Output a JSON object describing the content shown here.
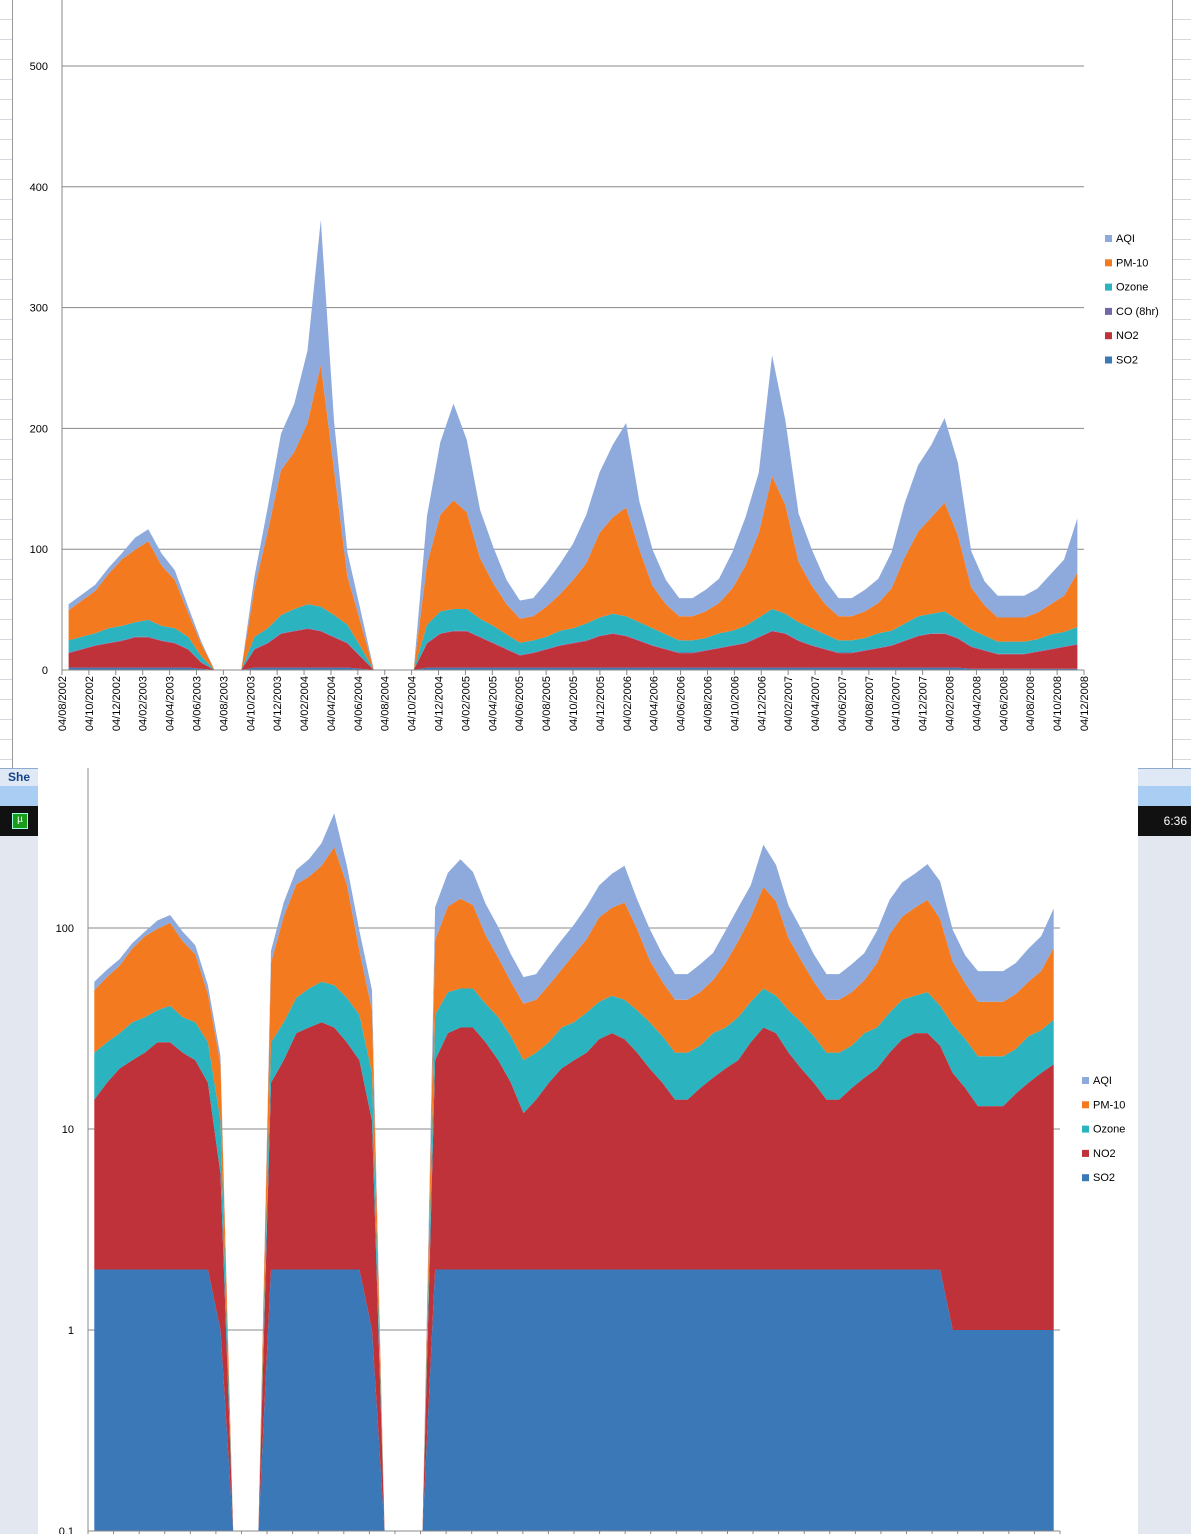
{
  "taskbar": {
    "sheet_tab": "She",
    "clock": "6:36"
  },
  "chart_data": [
    {
      "type": "area",
      "stacked": true,
      "scale": "linear",
      "ylim": [
        0,
        560
      ],
      "yticks": [
        0,
        100,
        200,
        300,
        400,
        500
      ],
      "grid": true,
      "legend": "right",
      "series_colors": {
        "SO2": "#3a78b8",
        "NO2": "#c0323a",
        "CO (8hr)": "#7466a8",
        "Ozone": "#2bb3c0",
        "PM-10": "#f47a20",
        "AQI": "#8eaadc"
      },
      "legend_entries": [
        "AQI",
        "PM-10",
        "Ozone",
        "CO (8hr)",
        "NO2",
        "SO2"
      ],
      "stack_order": [
        "SO2",
        "NO2",
        "CO (8hr)",
        "Ozone",
        "PM-10",
        "AQI"
      ]
    },
    {
      "type": "area",
      "stacked": true,
      "scale": "log",
      "ylim": [
        0.1,
        620
      ],
      "yticks": [
        0.1,
        1,
        10,
        100
      ],
      "grid": true,
      "legend": "right",
      "legend_entries": [
        "AQI",
        "PM-10",
        "Ozone",
        "NO2",
        "SO2"
      ],
      "stack_order": [
        "SO2",
        "NO2",
        "Ozone",
        "PM-10",
        "AQI"
      ]
    }
  ],
  "x_tick_labels": [
    "04/08/2002",
    "04/10/2002",
    "04/12/2002",
    "04/02/2003",
    "04/04/2003",
    "04/06/2003",
    "04/08/2003",
    "04/10/2003",
    "04/12/2003",
    "04/02/2004",
    "04/04/2004",
    "04/06/2004",
    "04/08/2004",
    "04/10/2004",
    "04/12/2004",
    "04/02/2005",
    "04/04/2005",
    "04/06/2005",
    "04/08/2005",
    "04/10/2005",
    "04/12/2005",
    "04/02/2006",
    "04/04/2006",
    "04/06/2006",
    "04/08/2006",
    "04/10/2006",
    "04/12/2006",
    "04/02/2007",
    "04/04/2007",
    "04/06/2007",
    "04/08/2007",
    "04/10/2007",
    "04/12/2007",
    "04/02/2008",
    "04/04/2008",
    "04/06/2008",
    "04/08/2008",
    "04/10/2008",
    "04/12/2008"
  ],
  "monthly_series": {
    "months_from": "08/2002",
    "months_to": "12/2008",
    "SO2": [
      2,
      2,
      2,
      2,
      2,
      2,
      2,
      2,
      2,
      2,
      1,
      0,
      0,
      0,
      2,
      2,
      2,
      2,
      2,
      2,
      2,
      2,
      1,
      0,
      0,
      0,
      0,
      2,
      2,
      2,
      2,
      2,
      2,
      2,
      2,
      2,
      2,
      2,
      2,
      2,
      2,
      2,
      2,
      2,
      2,
      2,
      2,
      2,
      2,
      2,
      2,
      2,
      2,
      2,
      2,
      2,
      2,
      2,
      2,
      2,
      2,
      2,
      2,
      2,
      2,
      2,
      2,
      2,
      1,
      1,
      1,
      1,
      1,
      1,
      1,
      1,
      1
    ],
    "NO2": [
      12,
      15,
      18,
      20,
      22,
      25,
      25,
      22,
      20,
      15,
      5,
      0,
      0,
      0,
      15,
      20,
      28,
      30,
      32,
      30,
      25,
      20,
      10,
      0,
      0,
      0,
      0,
      20,
      28,
      30,
      30,
      25,
      20,
      15,
      10,
      12,
      15,
      18,
      20,
      22,
      26,
      28,
      26,
      22,
      18,
      15,
      12,
      12,
      14,
      16,
      18,
      20,
      25,
      30,
      28,
      22,
      18,
      15,
      12,
      12,
      14,
      16,
      18,
      22,
      26,
      28,
      28,
      24,
      18,
      15,
      12,
      12,
      12,
      14,
      16,
      18,
      20
    ],
    "CO (8hr)": [
      0.5,
      0.5,
      0.5,
      0.5,
      0.5,
      0.5,
      0.5,
      0.5,
      0.5,
      0.5,
      0.3,
      0,
      0,
      0,
      0.5,
      0.5,
      0.5,
      0.5,
      0.5,
      0.5,
      0.5,
      0.5,
      0.3,
      0,
      0,
      0,
      0,
      0.5,
      0.5,
      0.5,
      0.5,
      0.5,
      0.5,
      0.5,
      0.5,
      0.5,
      0.5,
      0.5,
      0.5,
      0.5,
      0.5,
      0.5,
      0.5,
      0.5,
      0.5,
      0.5,
      0.5,
      0.5,
      0.5,
      0.5,
      0.5,
      0.5,
      0.5,
      0.5,
      0.5,
      0.5,
      0.5,
      0.5,
      0.5,
      0.5,
      0.5,
      0.5,
      0.5,
      0.5,
      0.5,
      0.5,
      0.5,
      0.5,
      0.5,
      0.5,
      0.5,
      0.5,
      0.5,
      0.5,
      0.5,
      0.5,
      0.5
    ],
    "Ozone": [
      10,
      10,
      10,
      12,
      12,
      12,
      14,
      12,
      12,
      10,
      5,
      0,
      0,
      0,
      10,
      12,
      15,
      18,
      20,
      20,
      18,
      15,
      8,
      0,
      0,
      0,
      0,
      15,
      18,
      18,
      18,
      15,
      14,
      12,
      10,
      10,
      10,
      12,
      12,
      14,
      15,
      16,
      16,
      15,
      14,
      12,
      10,
      10,
      10,
      12,
      12,
      14,
      16,
      18,
      16,
      15,
      14,
      12,
      10,
      10,
      10,
      12,
      12,
      14,
      16,
      16,
      18,
      15,
      14,
      12,
      10,
      10,
      10,
      10,
      12,
      12,
      14
    ],
    "PM-10": [
      25,
      30,
      35,
      45,
      55,
      60,
      65,
      50,
      40,
      20,
      10,
      0,
      0,
      0,
      40,
      80,
      120,
      130,
      150,
      200,
      120,
      40,
      20,
      0,
      0,
      0,
      0,
      50,
      80,
      90,
      80,
      50,
      35,
      25,
      20,
      20,
      25,
      30,
      40,
      50,
      70,
      80,
      90,
      60,
      35,
      25,
      20,
      20,
      22,
      25,
      35,
      50,
      70,
      110,
      90,
      50,
      35,
      25,
      20,
      20,
      22,
      25,
      35,
      55,
      70,
      80,
      90,
      70,
      35,
      25,
      20,
      20,
      20,
      22,
      25,
      30,
      45
    ],
    "AQI": [
      5,
      5,
      5,
      5,
      5,
      10,
      10,
      10,
      8,
      5,
      2,
      0,
      0,
      0,
      10,
      20,
      30,
      40,
      60,
      120,
      40,
      20,
      10,
      0,
      0,
      0,
      0,
      40,
      60,
      80,
      60,
      40,
      30,
      20,
      15,
      15,
      20,
      25,
      30,
      40,
      50,
      60,
      70,
      40,
      30,
      20,
      15,
      15,
      18,
      20,
      30,
      40,
      50,
      100,
      70,
      40,
      30,
      20,
      15,
      15,
      18,
      20,
      30,
      45,
      55,
      60,
      70,
      60,
      30,
      20,
      18,
      18,
      18,
      20,
      25,
      30,
      45
    ]
  }
}
